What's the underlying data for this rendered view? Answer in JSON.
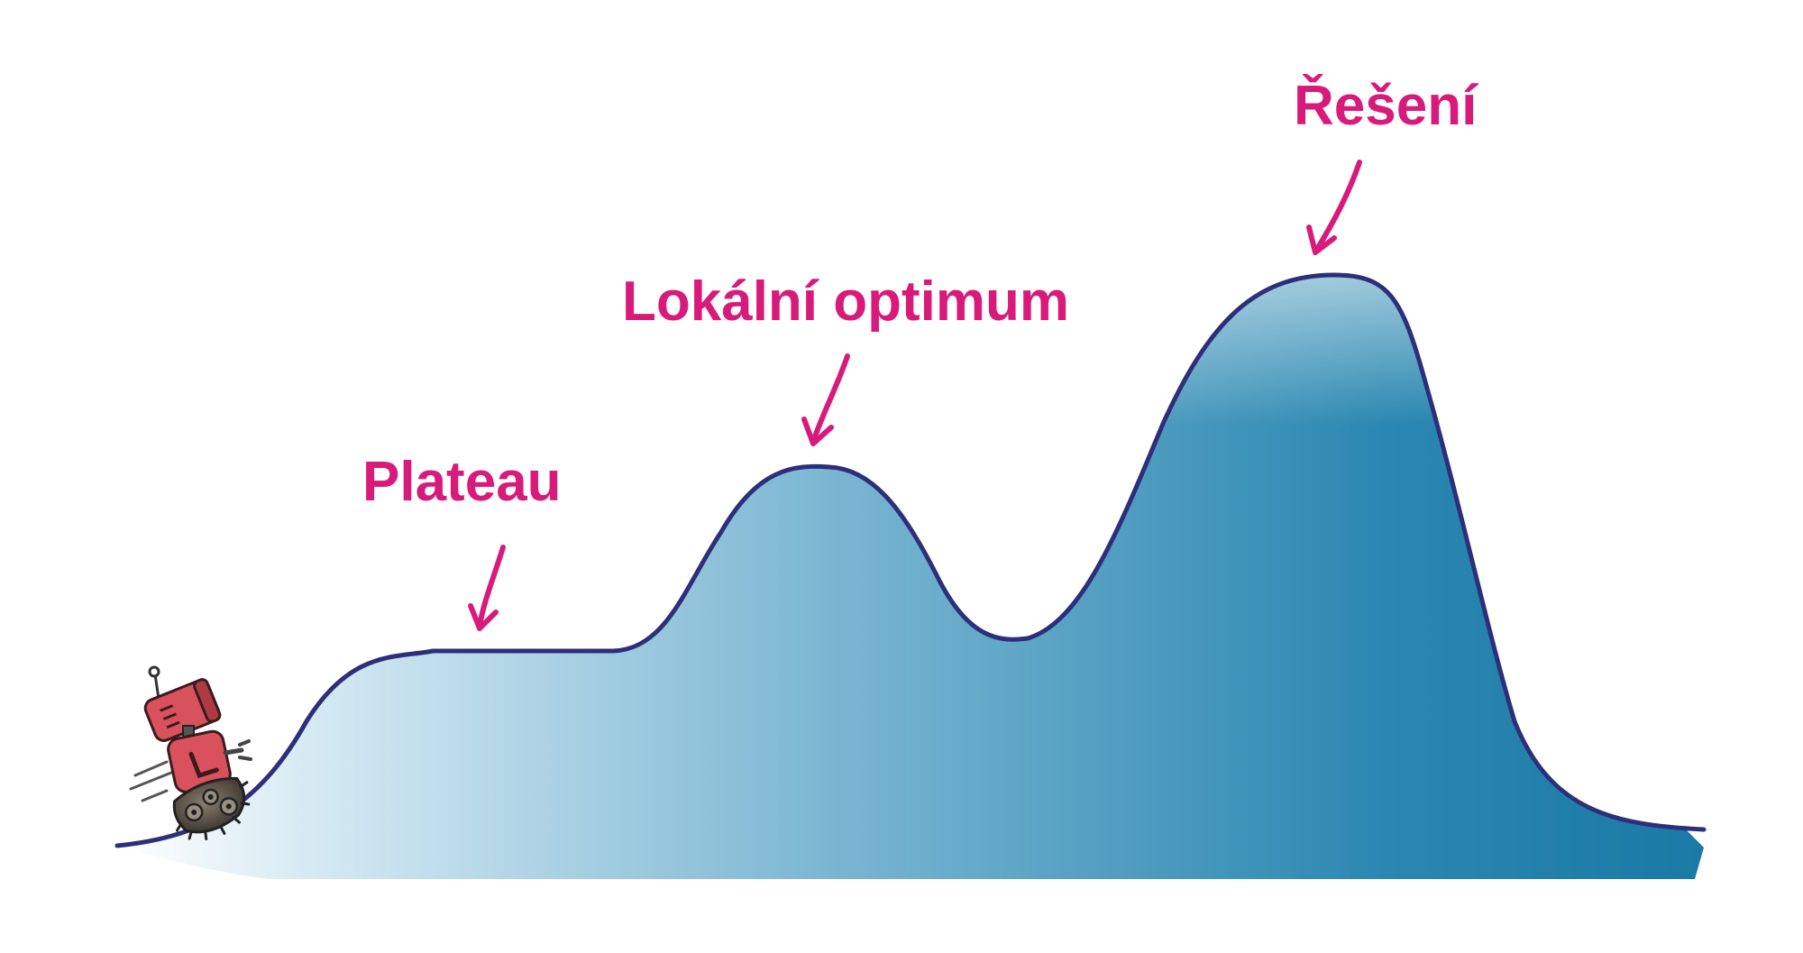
{
  "labels": {
    "plateau": "Plateau",
    "local_optimum": "Lokální optimum",
    "solution": "Řešení"
  },
  "colors": {
    "outline": "#2e2f7a",
    "fill_light": "#cfe6f1",
    "fill_mid": "#5aa3c4",
    "fill_dark": "#0f77a3",
    "annotation": "#d81b7a",
    "robot_body": "#d9515c",
    "robot_dark": "#6b2a2f",
    "robot_wheels": "#5a5247"
  },
  "icons": {
    "robot": "robot-icon",
    "arrow": "curved-arrow-icon"
  }
}
